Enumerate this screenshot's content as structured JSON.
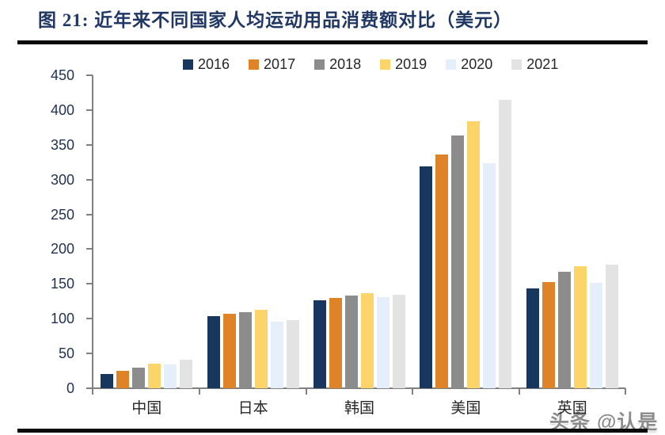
{
  "header": {
    "title": "图 21: 近年来不同国家人均运动用品消费额对比（美元）",
    "accent_color": "#203764"
  },
  "watermark": {
    "text": "头条 @认是"
  },
  "chart_data": {
    "type": "bar",
    "title": "近年来不同国家人均运动用品消费额对比（美元）",
    "xlabel": "",
    "ylabel": "",
    "categories": [
      "中国",
      "日本",
      "韩国",
      "美国",
      "英国"
    ],
    "series": [
      {
        "name": "2016",
        "color": "#17375E",
        "values": [
          21,
          104,
          127,
          319,
          143
        ]
      },
      {
        "name": "2017",
        "color": "#DE8327",
        "values": [
          25,
          107,
          130,
          336,
          153
        ]
      },
      {
        "name": "2018",
        "color": "#8C8C8C",
        "values": [
          30,
          109,
          133,
          363,
          167
        ]
      },
      {
        "name": "2019",
        "color": "#FBD56A",
        "values": [
          35,
          113,
          137,
          384,
          175
        ]
      },
      {
        "name": "2020",
        "color": "#E4EFFB",
        "values": [
          34,
          96,
          131,
          323,
          152
        ]
      },
      {
        "name": "2021",
        "color": "#E3E3E3",
        "values": [
          41,
          98,
          134,
          415,
          178
        ]
      }
    ],
    "ylim": [
      0,
      450
    ],
    "yticks": [
      0,
      50,
      100,
      150,
      200,
      250,
      300,
      350,
      400,
      450
    ],
    "grid": false,
    "legend_position": "top",
    "axis_color": "#808080",
    "tick_label_color": "#1F3150"
  }
}
